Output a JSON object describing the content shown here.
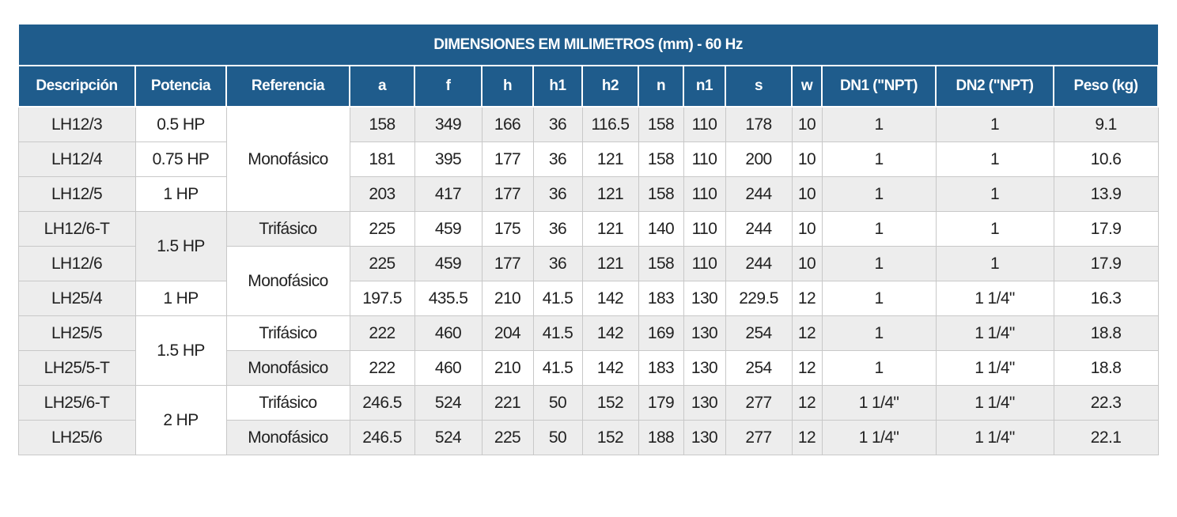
{
  "title": "DIMENSIONES EM MILIMETROS (mm) - 60 Hz",
  "headers": [
    "Descripción",
    "Potencia",
    "Referencia",
    "a",
    "f",
    "h",
    "h1",
    "h2",
    "n",
    "n1",
    "s",
    "w",
    "DN1 (\"NPT)",
    "DN2 (\"NPT)",
    "Peso (kg)"
  ],
  "rows": [
    {
      "desc": "LH12/3",
      "a": "158",
      "f": "349",
      "h": "166",
      "h1": "36",
      "h2": "116.5",
      "n": "158",
      "n1": "110",
      "s": "178",
      "w": "10",
      "dn1": "1",
      "dn2": "1",
      "peso": "9.1"
    },
    {
      "desc": "LH12/4",
      "a": "181",
      "f": "395",
      "h": "177",
      "h1": "36",
      "h2": "121",
      "n": "158",
      "n1": "110",
      "s": "200",
      "w": "10",
      "dn1": "1",
      "dn2": "1",
      "peso": "10.6"
    },
    {
      "desc": "LH12/5",
      "a": "203",
      "f": "417",
      "h": "177",
      "h1": "36",
      "h2": "121",
      "n": "158",
      "n1": "110",
      "s": "244",
      "w": "10",
      "dn1": "1",
      "dn2": "1",
      "peso": "13.9"
    },
    {
      "desc": "LH12/6-T",
      "a": "225",
      "f": "459",
      "h": "175",
      "h1": "36",
      "h2": "121",
      "n": "140",
      "n1": "110",
      "s": "244",
      "w": "10",
      "dn1": "1",
      "dn2": "1",
      "peso": "17.9"
    },
    {
      "desc": "LH12/6",
      "a": "225",
      "f": "459",
      "h": "177",
      "h1": "36",
      "h2": "121",
      "n": "158",
      "n1": "110",
      "s": "244",
      "w": "10",
      "dn1": "1",
      "dn2": "1",
      "peso": "17.9"
    },
    {
      "desc": "LH25/4",
      "a": "197.5",
      "f": "435.5",
      "h": "210",
      "h1": "41.5",
      "h2": "142",
      "n": "183",
      "n1": "130",
      "s": "229.5",
      "w": "12",
      "dn1": "1",
      "dn2": "1 1/4\"",
      "peso": "16.3"
    },
    {
      "desc": "LH25/5",
      "a": "222",
      "f": "460",
      "h": "204",
      "h1": "41.5",
      "h2": "142",
      "n": "169",
      "n1": "130",
      "s": "254",
      "w": "12",
      "dn1": "1",
      "dn2": "1 1/4\"",
      "peso": "18.8"
    },
    {
      "desc": "LH25/5-T",
      "a": "222",
      "f": "460",
      "h": "210",
      "h1": "41.5",
      "h2": "142",
      "n": "183",
      "n1": "130",
      "s": "254",
      "w": "12",
      "dn1": "1",
      "dn2": "1 1/4\"",
      "peso": "18.8"
    },
    {
      "desc": "LH25/6-T",
      "a": "246.5",
      "f": "524",
      "h": "221",
      "h1": "50",
      "h2": "152",
      "n": "179",
      "n1": "130",
      "s": "277",
      "w": "12",
      "dn1": "1 1/4\"",
      "dn2": "1 1/4\"",
      "peso": "22.3"
    },
    {
      "desc": "LH25/6",
      "a": "246.5",
      "f": "524",
      "h": "225",
      "h1": "50",
      "h2": "152",
      "n": "188",
      "n1": "130",
      "s": "277",
      "w": "12",
      "dn1": "1 1/4\"",
      "dn2": "1 1/4\"",
      "peso": "22.1"
    }
  ],
  "potencia": [
    "0.5 HP",
    "0.75 HP",
    "1 HP",
    "1.5 HP",
    "1 HP",
    "1.5 HP",
    "2 HP"
  ],
  "referencia": [
    "Monofásico",
    "Trifásico",
    "Monofásico",
    "Trifásico",
    "Monofásico",
    "Trifásico",
    "Monofásico"
  ]
}
